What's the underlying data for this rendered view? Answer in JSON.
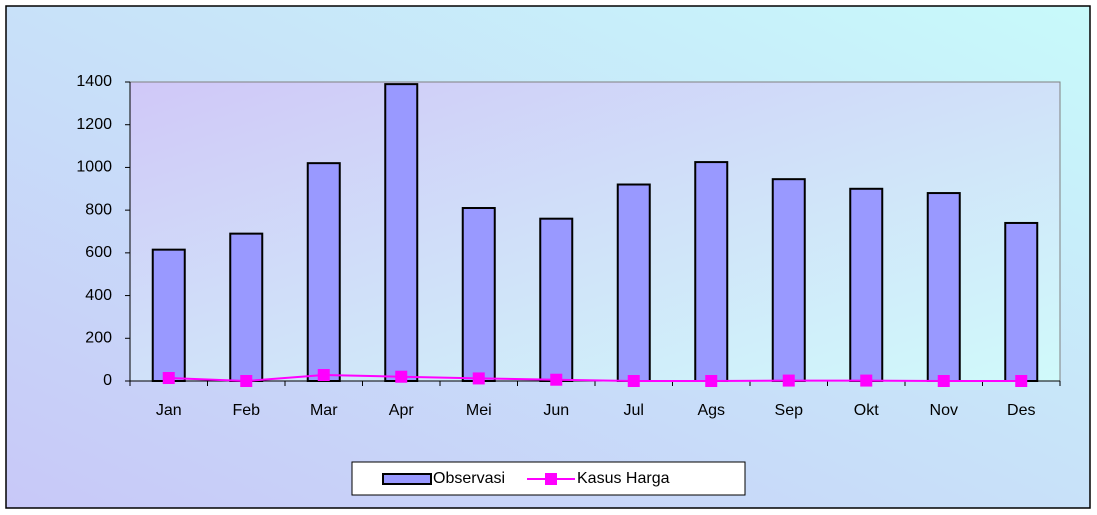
{
  "chart_data": {
    "type": "bar_line",
    "categories": [
      "Jan",
      "Feb",
      "Mar",
      "Apr",
      "Mei",
      "Jun",
      "Jul",
      "Ags",
      "Sep",
      "Okt",
      "Nov",
      "Des"
    ],
    "series": [
      {
        "name": "Observasi",
        "type": "bar",
        "color": "#9999ff",
        "values": [
          615,
          690,
          1020,
          1390,
          810,
          760,
          920,
          1025,
          945,
          900,
          880,
          740
        ]
      },
      {
        "name": "Kasus Harga",
        "type": "line",
        "color": "#ff00ff",
        "values": [
          14,
          0,
          28,
          20,
          12,
          6,
          0,
          0,
          2,
          2,
          0,
          0
        ]
      }
    ],
    "ylim": [
      0,
      1400
    ],
    "yticks": [
      0,
      200,
      400,
      600,
      800,
      1000,
      1200,
      1400
    ],
    "grid": false
  }
}
